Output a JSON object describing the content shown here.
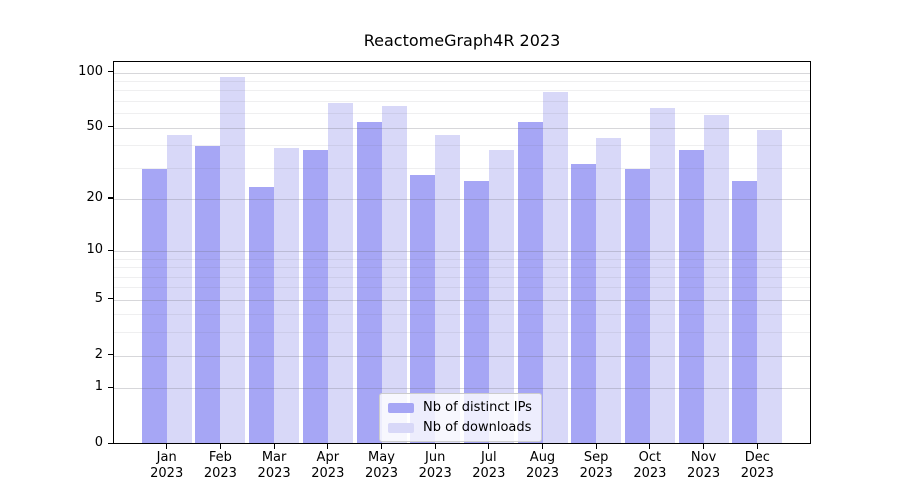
{
  "title": "ReactomeGraph4R 2023",
  "colors": {
    "distinct_ips_bar": "#a6a6f5",
    "downloads_bar": "#d8d8f8",
    "axis": "#000000",
    "legend_border": "#cccccc"
  },
  "chart_data": {
    "type": "bar",
    "title": "ReactomeGraph4R 2023",
    "categories": [
      "Jan 2023",
      "Feb 2023",
      "Mar 2023",
      "Apr 2023",
      "May 2023",
      "Jun 2023",
      "Jul 2023",
      "Aug 2023",
      "Sep 2023",
      "Oct 2023",
      "Nov 2023",
      "Dec 2023"
    ],
    "series": [
      {
        "name": "Nb of distinct IPs",
        "color": "#a6a6f5",
        "values": [
          29,
          39,
          23,
          37,
          53,
          27,
          25,
          53,
          31,
          29,
          37,
          25
        ]
      },
      {
        "name": "Nb of downloads",
        "color": "#d8d8f8",
        "values": [
          45,
          93,
          38,
          67,
          65,
          45,
          37,
          77,
          43,
          63,
          58,
          48
        ]
      }
    ],
    "xlabel": "",
    "ylabel": "",
    "yscale": "log1p",
    "ylim": [
      0,
      113
    ],
    "y_ticks": [
      0,
      1,
      2,
      5,
      10,
      20,
      50,
      100
    ],
    "y_minor_gridlines": [
      3,
      4,
      6,
      7,
      8,
      9,
      30,
      40,
      60,
      70,
      80,
      90
    ],
    "grid": "horizontal",
    "legend_position": "lower center"
  }
}
